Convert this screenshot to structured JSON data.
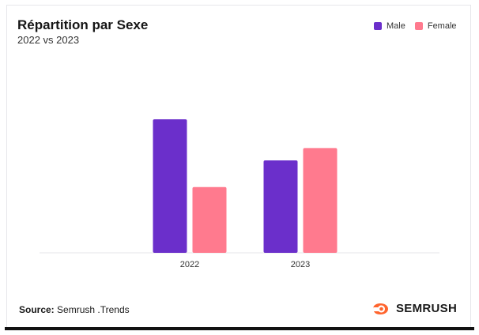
{
  "header": {
    "title": "Répartition par Sexe",
    "subtitle": "2022 vs 2023"
  },
  "legend": {
    "male_label": "Male",
    "female_label": "Female"
  },
  "colors": {
    "male": "#6b2fcb",
    "female": "#ff7a8e",
    "axis": "#e4e4e8",
    "brand": "#ff642d"
  },
  "footer": {
    "source_label": "Source:",
    "source_value": "Semrush .Trends",
    "brand": "SEMRUSH"
  },
  "chart_data": {
    "type": "bar",
    "categories": [
      "2022",
      "2023"
    ],
    "series": [
      {
        "name": "Male",
        "values": [
          65,
          45
        ]
      },
      {
        "name": "Female",
        "values": [
          32,
          51
        ]
      }
    ],
    "title": "Répartition par Sexe",
    "subtitle": "2022 vs 2023",
    "xlabel": "",
    "ylabel": "",
    "ylim": [
      0,
      100
    ],
    "grid": false,
    "legend_position": "top-right"
  }
}
